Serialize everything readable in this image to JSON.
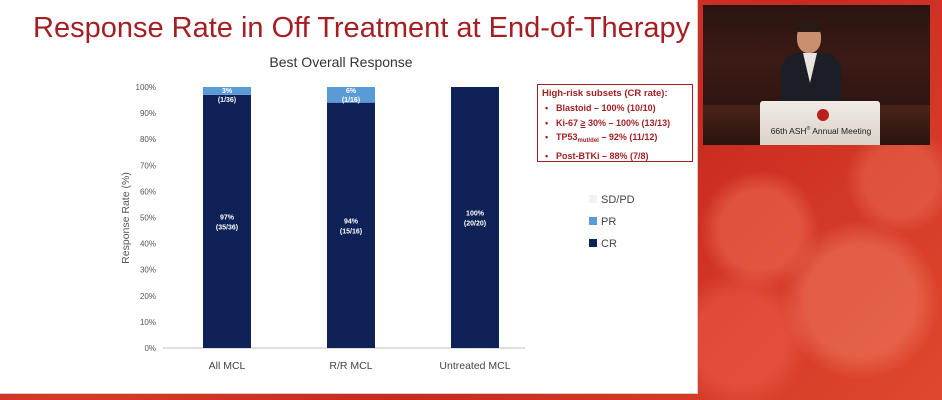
{
  "slide": {
    "title": "Response Rate in Off Treatment at End-of-Therapy"
  },
  "chart_data": {
    "type": "bar",
    "stacked": true,
    "title": "Best Overall Response",
    "xlabel": "",
    "ylabel": "Response Rate (%)",
    "ylim": [
      0,
      100
    ],
    "yticks": [
      "0%",
      "10%",
      "20%",
      "30%",
      "40%",
      "50%",
      "60%",
      "70%",
      "80%",
      "90%",
      "100%"
    ],
    "categories": [
      "All MCL",
      "R/R MCL",
      "Untreated MCL"
    ],
    "series": [
      {
        "name": "CR",
        "color": "#0f2258",
        "values": [
          97,
          94,
          100
        ],
        "labels": [
          [
            "97%",
            "(35/36)"
          ],
          [
            "94%",
            "(15/16)"
          ],
          [
            "100%",
            "(20/20)"
          ]
        ]
      },
      {
        "name": "PR",
        "color": "#5b9bd5",
        "values": [
          3,
          6,
          0
        ],
        "labels": [
          [
            "3%",
            "(1/36)"
          ],
          [
            "6%",
            "(1/16)"
          ],
          null
        ]
      },
      {
        "name": "SD/PD",
        "color": "#f2f2f2",
        "values": [
          0,
          0,
          0
        ],
        "labels": [
          null,
          null,
          null
        ]
      }
    ],
    "legend": [
      "SD/PD",
      "PR",
      "CR"
    ],
    "legend_position": "right"
  },
  "high_risk": {
    "title": "High-risk subsets (CR rate):",
    "items": [
      {
        "name": "Blastoid",
        "value": "– 100% (10/10)"
      },
      {
        "name": "Ki-67",
        "ge": "≥",
        "threshold": "30%",
        "value": "– 100% (13/13)"
      },
      {
        "name": "TP53",
        "sub": "mut/del",
        "value": "– 92% (11/12)"
      },
      {
        "name": "Post-BTKi",
        "value": "– 88% (7/8)"
      }
    ],
    "bullet": "•"
  },
  "video": {
    "meeting_prefix": "66th ASH",
    "meeting_sup": "®",
    "meeting_suffix": " Annual Meeting"
  }
}
